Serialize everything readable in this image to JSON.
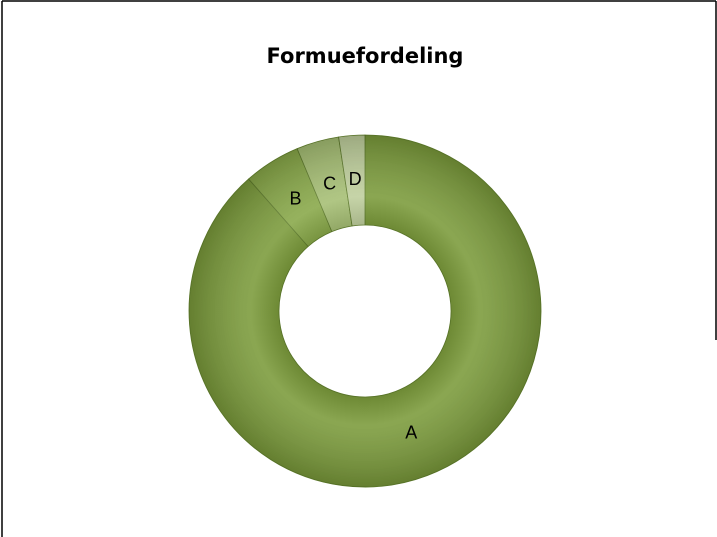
{
  "chart_data": {
    "type": "pie",
    "title": "Formuefordeling",
    "categories": [
      "A",
      "B",
      "C",
      "D"
    ],
    "values": [
      88.5,
      5.2,
      3.9,
      2.4
    ],
    "colors": [
      "#7b9b3b",
      "#88a848",
      "#a6bf74",
      "#bfcf9c"
    ],
    "donut": true
  }
}
